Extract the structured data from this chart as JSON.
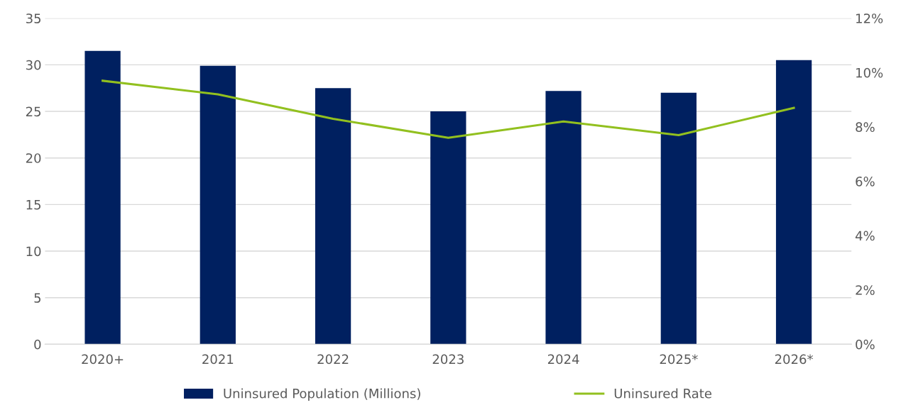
{
  "chart_data": {
    "type": "bar",
    "categories": [
      "2020+",
      "2021",
      "2022",
      "2023",
      "2024",
      "2025*",
      "2026*"
    ],
    "series": [
      {
        "name": "Uninsured Population (Millions)",
        "color": "#002060",
        "values": [
          31.5,
          29.9,
          27.5,
          25.0,
          27.2,
          27.0,
          30.5
        ]
      },
      {
        "name": "Uninsured Rate",
        "type": "line",
        "axis": "y2",
        "color": "#92c01f",
        "values": [
          9.7,
          9.2,
          8.3,
          7.6,
          8.2,
          7.7,
          8.7
        ]
      }
    ],
    "ylim": [
      0,
      35
    ],
    "yticks": [
      0,
      5,
      10,
      15,
      20,
      25,
      30,
      35
    ],
    "y2lim": [
      0,
      12
    ],
    "y2ticks": [
      {
        "value": 0,
        "label": "0%"
      },
      {
        "value": 2,
        "label": "2%"
      },
      {
        "value": 4,
        "label": "4%"
      },
      {
        "value": 6,
        "label": "6%"
      },
      {
        "value": 8,
        "label": "8%"
      },
      {
        "value": 10,
        "label": "10%"
      },
      {
        "value": 12,
        "label": "12%"
      }
    ],
    "grid": "y",
    "legend": "bottom",
    "marker": "none",
    "line_style": "solid"
  }
}
